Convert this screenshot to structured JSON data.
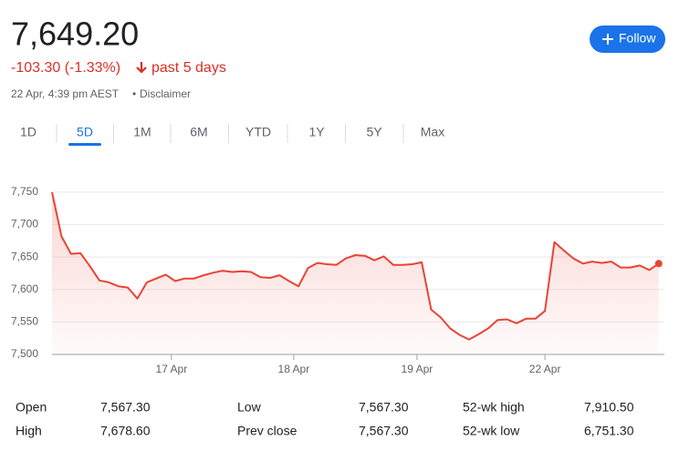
{
  "header": {
    "price": "7,649.20",
    "change": "-103.30 (-1.33%)",
    "period": "past 5 days",
    "timestamp": "22 Apr, 4:39 pm AEST",
    "disclaimer": "Disclaimer",
    "follow": "Follow"
  },
  "ranges": {
    "items": [
      "1D",
      "5D",
      "1M",
      "6M",
      "YTD",
      "1Y",
      "5Y",
      "Max"
    ],
    "selected": 1
  },
  "chart_data": {
    "type": "line",
    "color": "#ea4335",
    "grid": true,
    "x": [
      0,
      1,
      2,
      3,
      4,
      5,
      6,
      7,
      8,
      9,
      10,
      11,
      12,
      13,
      14,
      15,
      16,
      17,
      18,
      19,
      20,
      21,
      22,
      23,
      24,
      25,
      26,
      27,
      28,
      29,
      30,
      31,
      32,
      33,
      34,
      35,
      36,
      37,
      38,
      39,
      40,
      41,
      42,
      43,
      44,
      45,
      46,
      47,
      48,
      49,
      50,
      51,
      52,
      53,
      54,
      55,
      56,
      57,
      58,
      59,
      60,
      61,
      62,
      63,
      64
    ],
    "values": [
      7750,
      7682,
      7655,
      7656,
      7636,
      7614,
      7611,
      7605,
      7603,
      7586,
      7611,
      7617,
      7623,
      7613,
      7617,
      7617,
      7622,
      7626,
      7629,
      7627,
      7628,
      7627,
      7619,
      7618,
      7622,
      7613,
      7605,
      7633,
      7641,
      7639,
      7638,
      7648,
      7653,
      7652,
      7645,
      7651,
      7638,
      7638,
      7639,
      7642,
      7569,
      7557,
      7540,
      7530,
      7523,
      7531,
      7540,
      7553,
      7554,
      7548,
      7555,
      7555,
      7567,
      7673,
      7660,
      7648,
      7640,
      7643,
      7641,
      7643,
      7634,
      7634,
      7637,
      7630,
      7640
    ],
    "xlim": [
      0,
      64.6
    ],
    "xticks": [
      {
        "value": 12.6,
        "label": "17 Apr"
      },
      {
        "value": 25.5,
        "label": "18 Apr"
      },
      {
        "value": 38.5,
        "label": "19 Apr"
      },
      {
        "value": 52,
        "label": "22 Apr"
      }
    ],
    "ylim": [
      7500,
      7785
    ],
    "yticks": [
      {
        "value": 7500,
        "label": "7,500"
      },
      {
        "value": 7550,
        "label": "7,550"
      },
      {
        "value": 7600,
        "label": "7,600"
      },
      {
        "value": 7650,
        "label": "7,650"
      },
      {
        "value": 7700,
        "label": "7,700"
      },
      {
        "value": 7750,
        "label": "7,750"
      }
    ]
  },
  "stats": {
    "rows": [
      [
        [
          "Open",
          "7,567.30"
        ],
        [
          "Low",
          "7,567.30"
        ],
        [
          "52-wk high",
          "7,910.50"
        ]
      ],
      [
        [
          "High",
          "7,678.60"
        ],
        [
          "Prev close",
          "7,567.30"
        ],
        [
          "52-wk low",
          "6,751.30"
        ]
      ]
    ]
  }
}
